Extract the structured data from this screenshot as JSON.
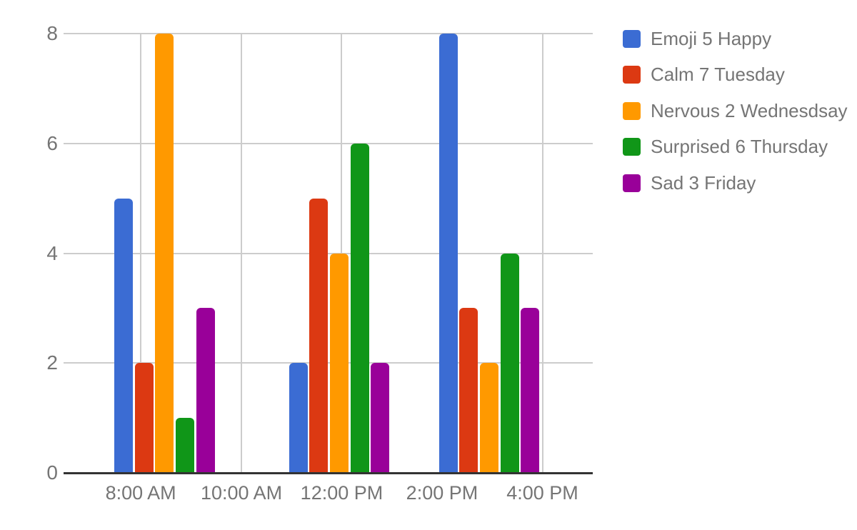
{
  "chart_data": {
    "type": "bar",
    "title": "",
    "x_axis": {
      "tick_labels": [
        "8:00 AM",
        "10:00 AM",
        "12:00 PM",
        "2:00 PM",
        "4:00 PM"
      ],
      "tick_positions": [
        0.1459,
        0.3361,
        0.5256,
        0.7152,
        0.9049
      ]
    },
    "y_axis": {
      "min": 0,
      "max": 8,
      "ticks": [
        0,
        2,
        4,
        6,
        8
      ]
    },
    "series": [
      {
        "name": "Emoji 5 Happy",
        "color": "#3B6CD3",
        "values": [
          5,
          2,
          8
        ]
      },
      {
        "name": "Calm 7 Tuesday",
        "color": "#DC3912",
        "values": [
          2,
          5,
          3
        ]
      },
      {
        "name": "Nervous 2 Wednesdsay",
        "color": "#FF9900",
        "values": [
          8,
          4,
          2
        ]
      },
      {
        "name": "Surprised 6 Thursday",
        "color": "#109618",
        "values": [
          1,
          6,
          4
        ]
      },
      {
        "name": "Sad 3 Friday",
        "color": "#990099",
        "values": [
          3,
          2,
          3
        ]
      }
    ],
    "group_positions": [
      0.1909,
      0.5209,
      0.8043
    ],
    "legend_position": "right",
    "grid": true
  },
  "style": {
    "background": "#FFFFFF",
    "grid_color": "#CCCCCC",
    "axis_line_color": "#333333",
    "label_color": "#757575"
  }
}
